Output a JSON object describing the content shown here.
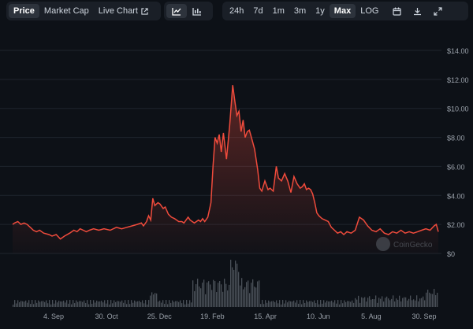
{
  "tabs": {
    "price": "Price",
    "market_cap": "Market Cap",
    "live_chart": "Live Chart"
  },
  "ranges": [
    "24h",
    "7d",
    "1m",
    "3m",
    "1y",
    "Max",
    "LOG"
  ],
  "active_range": "Max",
  "icons": {
    "line_chart": "line-chart-icon",
    "candle_chart": "candlestick-icon",
    "calendar": "calendar-icon",
    "download": "download-icon",
    "fullscreen": "fullscreen-icon",
    "external": "external-link-icon"
  },
  "watermark": "CoinGecko",
  "colors": {
    "price_line": "#ef4b3c",
    "background": "#0d1117",
    "grid": "#1f252e",
    "volume": "#4a5058"
  },
  "chart_data": {
    "type": "area",
    "title": "",
    "xlabel": "",
    "ylabel": "",
    "ylim": [
      0,
      14
    ],
    "y_ticks": [
      "$14.00",
      "$12.00",
      "$10.00",
      "$8.00",
      "$6.00",
      "$4.00",
      "$2.00",
      "$0"
    ],
    "x_tick_labels": [
      "4. Sep",
      "30. Oct",
      "25. Dec",
      "19. Feb",
      "15. Apr",
      "10. Jun",
      "5. Aug",
      "30. Sep"
    ],
    "series": [
      {
        "x": [
          0,
          2,
          5,
          8,
          11,
          14,
          17,
          20,
          23,
          26,
          30,
          35,
          38,
          42,
          46,
          50,
          55,
          59,
          62,
          65,
          68,
          71,
          74,
          78,
          83,
          88,
          94,
          100,
          105,
          110,
          115,
          120,
          124,
          126,
          129,
          131,
          133,
          135,
          137,
          140,
          142,
          145,
          147,
          150,
          153,
          156,
          160,
          163,
          165,
          167,
          169,
          171,
          173,
          175,
          177,
          179,
          181,
          183,
          185,
          188,
          191,
          193,
          195,
          197,
          199,
          201,
          203,
          206,
          209,
          212,
          214,
          216,
          218,
          220,
          222,
          224,
          226,
          228,
          230,
          233,
          236,
          238,
          240,
          243,
          246,
          248,
          251,
          254,
          256,
          259,
          262,
          265,
          268,
          271,
          274,
          277,
          279,
          281,
          283,
          285,
          287,
          289,
          291,
          293,
          295,
          298,
          301,
          304,
          307,
          310,
          313,
          316,
          319,
          322,
          326,
          330,
          334,
          338,
          342,
          346,
          350,
          354,
          358,
          362,
          366,
          370,
          374,
          378,
          382,
          386,
          390,
          394,
          398,
          402,
          406,
          408,
          410
        ],
        "values": [
          2.0,
          2.1,
          2.2,
          2.0,
          2.1,
          2.0,
          1.8,
          1.6,
          1.5,
          1.6,
          1.4,
          1.3,
          1.2,
          1.3,
          1.0,
          1.2,
          1.4,
          1.6,
          1.5,
          1.7,
          1.6,
          1.5,
          1.6,
          1.7,
          1.6,
          1.7,
          1.6,
          1.8,
          1.7,
          1.8,
          1.9,
          2.0,
          2.1,
          1.9,
          2.2,
          2.6,
          2.3,
          3.8,
          3.3,
          3.5,
          3.4,
          3.1,
          3.2,
          2.7,
          2.5,
          2.4,
          2.2,
          2.2,
          2.1,
          2.3,
          2.5,
          2.3,
          2.2,
          2.1,
          2.2,
          2.3,
          2.2,
          2.4,
          2.2,
          2.5,
          3.5,
          6.0,
          8.0,
          7.6,
          8.2,
          7.0,
          8.3,
          6.5,
          8.8,
          11.6,
          10.5,
          9.5,
          9.8,
          8.4,
          9.2,
          8.0,
          8.4,
          8.5,
          8.0,
          7.2,
          5.8,
          4.5,
          4.3,
          5.0,
          4.4,
          4.5,
          4.3,
          6.0,
          5.2,
          5.0,
          5.5,
          5.0,
          4.2,
          5.3,
          4.8,
          4.5,
          4.6,
          4.8,
          4.4,
          4.5,
          4.4,
          4.1,
          3.5,
          2.8,
          2.6,
          2.4,
          2.3,
          2.2,
          1.8,
          1.6,
          1.4,
          1.5,
          1.3,
          1.5,
          1.4,
          1.6,
          2.5,
          2.3,
          1.9,
          1.6,
          1.5,
          1.7,
          1.4,
          1.3,
          1.5,
          1.4,
          1.6,
          1.4,
          1.5,
          1.4,
          1.5,
          1.6,
          1.7,
          1.6,
          1.9,
          2.0,
          1.5
        ]
      }
    ],
    "grid": true,
    "legend": "none"
  }
}
